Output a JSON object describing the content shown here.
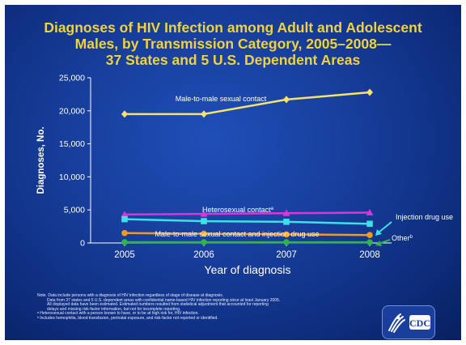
{
  "title_lines": [
    "Diagnoses of HIV Infection among Adult and Adolescent",
    "Males, by Transmission Category, 2005–2008—",
    "37 States and 5 U.S. Dependent Areas"
  ],
  "colors": {
    "title": "#f2d23c",
    "background": "#163c98",
    "axis_text": "#ffffff"
  },
  "chart_data": {
    "type": "line",
    "x": [
      "2005",
      "2006",
      "2007",
      "2008"
    ],
    "xlabel": "Year of diagnosis",
    "ylabel": "Diagnoses, No.",
    "ylim": [
      0,
      25000
    ],
    "yticks": [
      "0",
      "5,000",
      "10,000",
      "15,000",
      "20,000",
      "25,000"
    ],
    "grid": false,
    "series": [
      {
        "name": "Male-to-male sexual contact",
        "values": [
          19500,
          19500,
          21700,
          22800
        ],
        "color": "#f7e26b",
        "marker": "diamond"
      },
      {
        "name": "Heterosexual contact",
        "superscript": "a",
        "values": [
          4300,
          4400,
          4500,
          4600
        ],
        "color": "#d936d9",
        "marker": "triangle"
      },
      {
        "name": "Injection drug use",
        "values": [
          3600,
          3300,
          3200,
          2900
        ],
        "color": "#3ee0e6",
        "marker": "square"
      },
      {
        "name": "Male-to-male sexual contact and injection drug use",
        "values": [
          1500,
          1400,
          1300,
          1200
        ],
        "color": "#f39a1e",
        "marker": "circle"
      },
      {
        "name": "Other",
        "superscript": "b",
        "values": [
          120,
          110,
          110,
          100
        ],
        "color": "#2fb34a",
        "marker": "circle"
      }
    ]
  },
  "notes": [
    "Note. Data include persons with a diagnosis of HIV infection regardless of stage of disease at diagnosis.",
    "Data from 37 states and 5 U.S. dependent areas with confidential name-based HIV infection reporting since at least January 2005.",
    "All displayed data have been estimated. Estimated numbers resulted from statistical adjustment that accounted for reporting",
    "delays and missing risk-factor information, but not for incomplete reporting.",
    "ᵃ Heterosexual contact with a person known to have, or to be at high risk for, HIV infection.",
    "ᵇ Includes hemophilia, blood transfusion, perinatal exposure, and risk-factor not reported or identified."
  ],
  "logo": {
    "text": "CDC",
    "icon": "hhs-eagle-icon"
  }
}
